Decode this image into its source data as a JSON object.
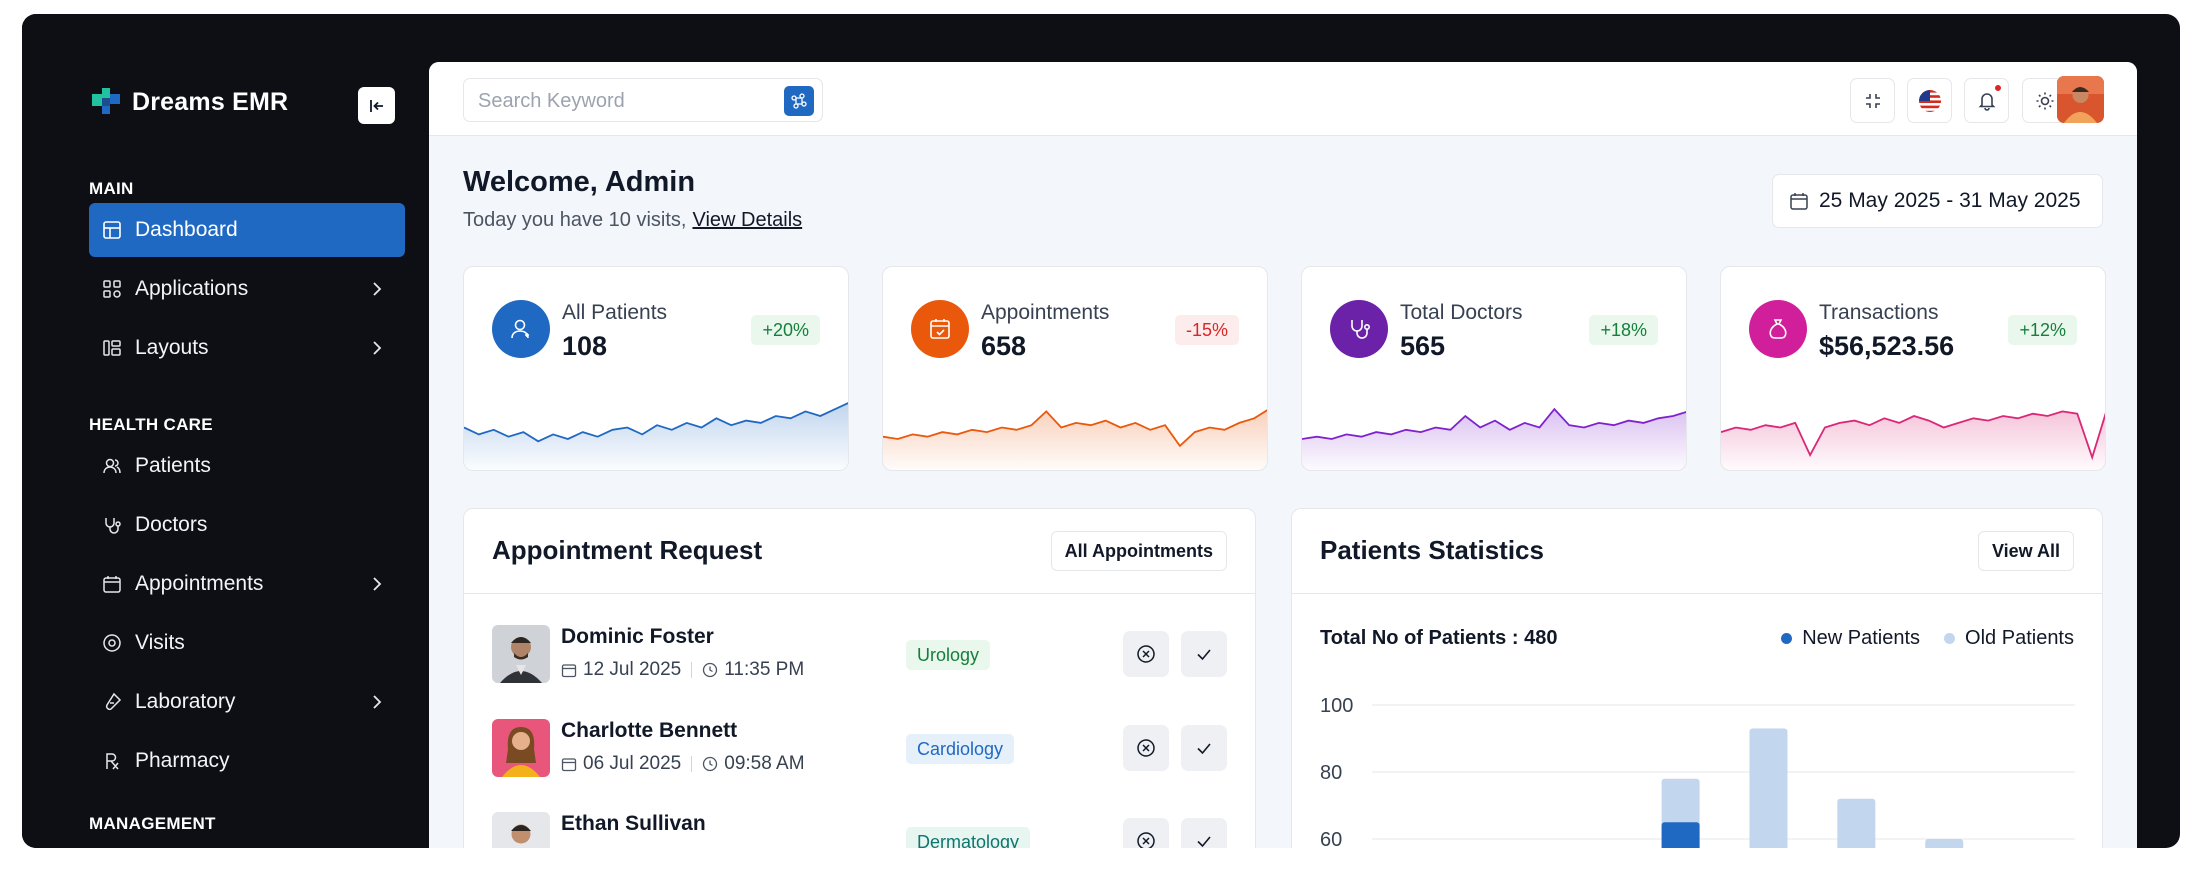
{
  "brand": {
    "name": "Dreams EMR"
  },
  "sidebar": {
    "sections": [
      {
        "title": "MAIN"
      },
      {
        "title": "HEALTH CARE"
      },
      {
        "title": "MANAGEMENT"
      }
    ],
    "items": [
      {
        "label": "Dashboard",
        "icon": "dashboard-icon",
        "active": true
      },
      {
        "label": "Applications",
        "icon": "apps-icon",
        "submenu": true
      },
      {
        "label": "Layouts",
        "icon": "layouts-icon",
        "submenu": true
      },
      {
        "label": "Patients",
        "icon": "users-icon"
      },
      {
        "label": "Doctors",
        "icon": "stethoscope-icon"
      },
      {
        "label": "Appointments",
        "icon": "calendar-icon",
        "submenu": true
      },
      {
        "label": "Visits",
        "icon": "visits-icon"
      },
      {
        "label": "Laboratory",
        "icon": "lab-icon",
        "submenu": true
      },
      {
        "label": "Pharmacy",
        "icon": "rx-icon"
      }
    ]
  },
  "search": {
    "placeholder": "Search Keyword"
  },
  "header": {
    "welcome": "Welcome, Admin",
    "visits_text": "Today you have 10 visits,",
    "view_details": "View Details",
    "date_range": "25 May 2025 - 31 May 2025"
  },
  "stats": [
    {
      "label": "All Patients",
      "value": "108",
      "badge": "+20%",
      "trend": "up",
      "color": "#2069c2",
      "spark": [
        30,
        24,
        28,
        22,
        26,
        18,
        24,
        20,
        26,
        22,
        28,
        30,
        24,
        32,
        28,
        34,
        30,
        38,
        32,
        36,
        34,
        40,
        38,
        44,
        40,
        46,
        52
      ]
    },
    {
      "label": "Appointments",
      "value": "658",
      "badge": "-15%",
      "trend": "down",
      "color": "#ea580c",
      "spark": [
        22,
        20,
        24,
        22,
        26,
        24,
        28,
        26,
        30,
        28,
        32,
        44,
        30,
        34,
        32,
        36,
        30,
        34,
        28,
        32,
        14,
        26,
        30,
        28,
        34,
        38,
        46
      ]
    },
    {
      "label": "Total Doctors",
      "value": "565",
      "badge": "+18%",
      "trend": "up",
      "color": "#7e22ce",
      "spark": [
        20,
        22,
        20,
        24,
        22,
        26,
        24,
        28,
        26,
        30,
        28,
        40,
        30,
        36,
        28,
        34,
        30,
        46,
        32,
        30,
        34,
        32,
        36,
        34,
        38,
        40,
        44
      ]
    },
    {
      "label": "Transactions",
      "value": "$56,523.56",
      "badge": "+12%",
      "trend": "up",
      "color": "#db2777",
      "spark": [
        26,
        30,
        28,
        32,
        30,
        34,
        6,
        30,
        34,
        36,
        32,
        38,
        34,
        40,
        36,
        30,
        34,
        38,
        36,
        40,
        38,
        42,
        40,
        44,
        42,
        4,
        46
      ]
    }
  ],
  "appointments": {
    "title": "Appointment Request",
    "button": "All Appointments",
    "rows": [
      {
        "name": "Dominic Foster",
        "date": "12 Jul 2025",
        "time": "11:35 PM",
        "dept": "Urology",
        "dept_style": "green"
      },
      {
        "name": "Charlotte Bennett",
        "date": "06 Jul 2025",
        "time": "09:58 AM",
        "dept": "Cardiology",
        "dept_style": "blue"
      },
      {
        "name": "Ethan Sullivan",
        "date": "",
        "time": "",
        "dept": "Dermatology",
        "dept_style": "teal"
      }
    ]
  },
  "patients_stats": {
    "title": "Patients Statistics",
    "button": "View All",
    "total_label": "Total No of Patients : 480",
    "legend": [
      {
        "label": "New Patients",
        "color": "#2069c2"
      },
      {
        "label": "Old Patients",
        "color": "#c2d6ee"
      }
    ]
  },
  "chart_data": {
    "type": "bar",
    "y_ticks": [
      "100",
      "80",
      "60"
    ],
    "ylim": [
      0,
      100
    ],
    "series": [
      {
        "name": "New Patients",
        "values": [
          null,
          null,
          null,
          65,
          null,
          null,
          null,
          null
        ]
      },
      {
        "name": "Old Patients",
        "values": [
          null,
          null,
          null,
          78,
          93,
          72,
          60,
          null
        ]
      }
    ],
    "grid": true
  }
}
